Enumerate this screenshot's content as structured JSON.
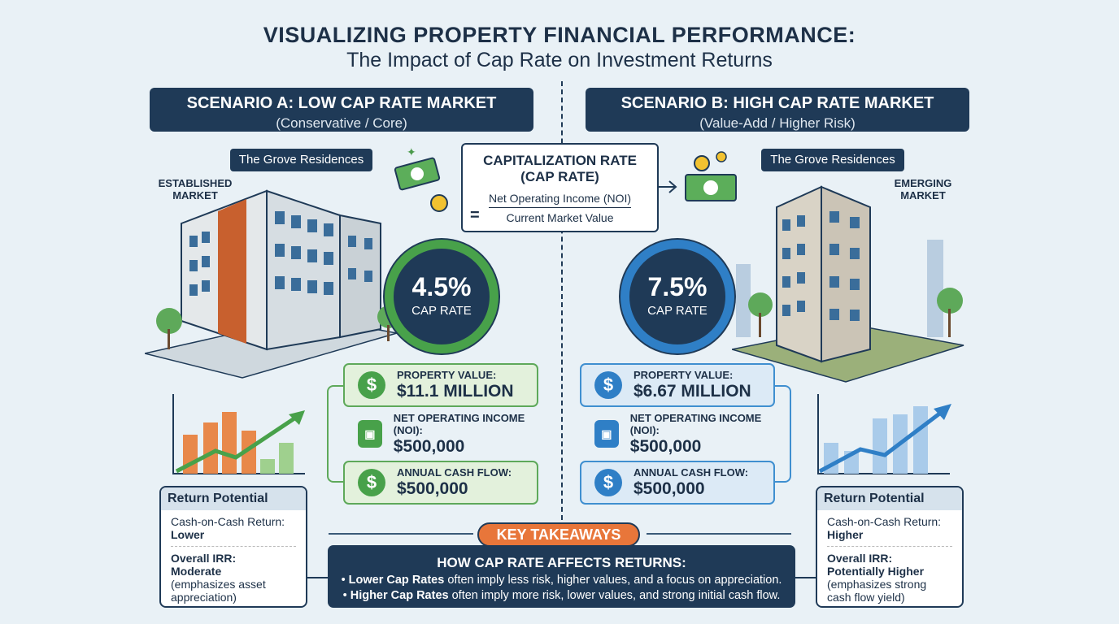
{
  "title": "VISUALIZING PROPERTY FINANCIAL PERFORMANCE:",
  "subtitle": "The Impact of Cap Rate on Investment Returns",
  "formula": {
    "title_line1": "CAPITALIZATION RATE",
    "title_line2": "(CAP RATE)",
    "equals": "=",
    "numerator": "Net Operating Income (NOI)",
    "denominator": "Current Market Value"
  },
  "scenario_a": {
    "heading": "SCENARIO A: LOW CAP RATE MARKET",
    "sub": "(Conservative / Core)",
    "property": "The Grove Residences",
    "market_line1": "ESTABLISHED",
    "market_line2": "MARKET",
    "cap_rate": "4.5%",
    "cap_label": "CAP RATE",
    "cards": [
      {
        "label": "PROPERTY VALUE:",
        "value": "$11.1 MILLION",
        "icon": "dollar-icon"
      },
      {
        "label": "NET OPERATING INCOME (NOI):",
        "value": "$500,000",
        "icon": "banknote-icon"
      },
      {
        "label": "ANNUAL CASH FLOW:",
        "value": "$500,000",
        "icon": "dollar-icon"
      }
    ],
    "return": {
      "heading": "Return Potential",
      "coc_label": "Cash-on-Cash Return:",
      "coc_value": "Lower",
      "irr_label": "Overall IRR:",
      "irr_value": "Moderate",
      "irr_note": "(emphasizes asset appreciation)"
    },
    "color": "#48a14a"
  },
  "scenario_b": {
    "heading": "SCENARIO B: HIGH CAP RATE MARKET",
    "sub": "(Value-Add / Higher Risk)",
    "property": "The Grove Residences",
    "market_line1": "EMERGING",
    "market_line2": "MARKET",
    "cap_rate": "7.5%",
    "cap_label": "CAP RATE",
    "cards": [
      {
        "label": "PROPERTY VALUE:",
        "value": "$6.67 MILLION",
        "icon": "dollar-icon"
      },
      {
        "label": "NET OPERATING INCOME (NOI):",
        "value": "$500,000",
        "icon": "banknote-icon"
      },
      {
        "label": "ANNUAL CASH FLOW:",
        "value": "$500,000",
        "icon": "dollar-icon"
      }
    ],
    "return": {
      "heading": "Return Potential",
      "coc_label": "Cash-on-Cash Return:",
      "coc_value": "Higher",
      "irr_label": "Overall IRR:",
      "irr_value": "Potentially Higher",
      "irr_note": "(emphasizes strong cash flow yield)"
    },
    "color": "#2f7fc6"
  },
  "takeaways": {
    "pill": "KEY TAKEAWAYS",
    "heading": "HOW CAP RATE AFFECTS RETURNS:",
    "line1_bold": "Lower Cap Rates",
    "line1_rest": " often imply less risk, higher values, and a focus on appreciation.",
    "line2_bold": "Higher Cap Rates",
    "line2_rest": " often imply more risk, lower values, and strong initial cash flow."
  }
}
